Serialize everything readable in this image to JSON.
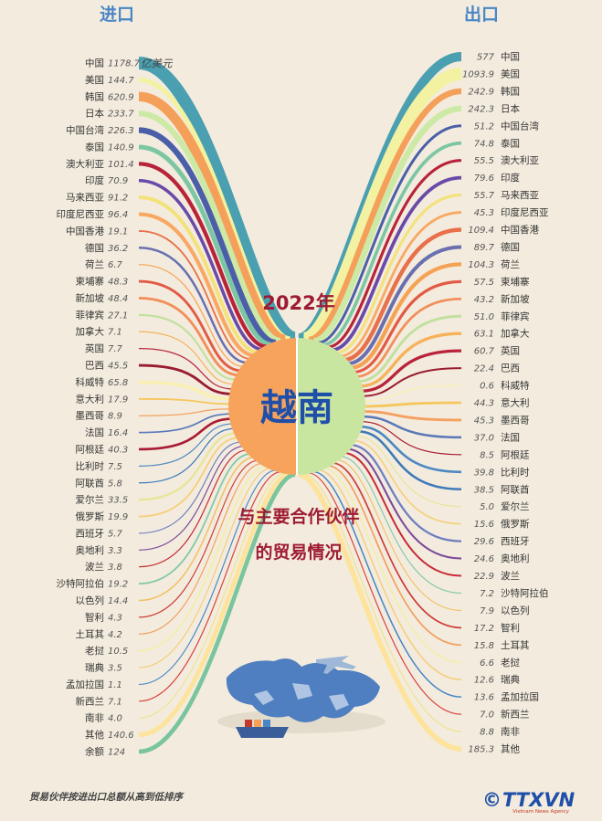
{
  "header": {
    "import_title": "进口",
    "export_title": "出口"
  },
  "center": {
    "year": "2022年",
    "country": "越南",
    "subtitle_line1": "与主要合作伙伴",
    "subtitle_line2": "的贸易情况"
  },
  "unit_label": "亿美元",
  "footnote": "贸易伙伴按进出口总额从高到低排序",
  "logo": {
    "text": "TTXVN",
    "copyright": "©",
    "tagline": "Vietnam News Agency"
  },
  "chart_data": {
    "type": "flow",
    "imports": [
      {
        "partner": "中国",
        "value": 1178.7
      },
      {
        "partner": "美国",
        "value": 144.7
      },
      {
        "partner": "韩国",
        "value": 620.9
      },
      {
        "partner": "日本",
        "value": 233.7
      },
      {
        "partner": "中国台湾",
        "value": 226.3
      },
      {
        "partner": "泰国",
        "value": 140.9
      },
      {
        "partner": "澳大利亚",
        "value": 101.4
      },
      {
        "partner": "印度",
        "value": 70.9
      },
      {
        "partner": "马来西亚",
        "value": 91.2
      },
      {
        "partner": "印度尼西亚",
        "value": 96.4
      },
      {
        "partner": "中国香港",
        "value": 19.1
      },
      {
        "partner": "德国",
        "value": 36.2
      },
      {
        "partner": "荷兰",
        "value": 6.7
      },
      {
        "partner": "柬埔寨",
        "value": 48.3
      },
      {
        "partner": "新加坡",
        "value": 48.4
      },
      {
        "partner": "菲律宾",
        "value": 27.1
      },
      {
        "partner": "加拿大",
        "value": 7.1
      },
      {
        "partner": "英国",
        "value": 7.7
      },
      {
        "partner": "巴西",
        "value": 45.5
      },
      {
        "partner": "科威特",
        "value": 65.8
      },
      {
        "partner": "意大利",
        "value": 17.9
      },
      {
        "partner": "墨西哥",
        "value": 8.9
      },
      {
        "partner": "法国",
        "value": 16.4
      },
      {
        "partner": "阿根廷",
        "value": 40.3
      },
      {
        "partner": "比利时",
        "value": 7.5
      },
      {
        "partner": "阿联酋",
        "value": 5.8
      },
      {
        "partner": "爱尔兰",
        "value": 33.5
      },
      {
        "partner": "俄罗斯",
        "value": 19.9
      },
      {
        "partner": "西班牙",
        "value": 5.7
      },
      {
        "partner": "奥地利",
        "value": 3.3
      },
      {
        "partner": "波兰",
        "value": 3.8
      },
      {
        "partner": "沙特阿拉伯",
        "value": 19.2
      },
      {
        "partner": "以色列",
        "value": 14.4
      },
      {
        "partner": "智利",
        "value": 4.3
      },
      {
        "partner": "土耳其",
        "value": 4.2
      },
      {
        "partner": "老挝",
        "value": 10.5
      },
      {
        "partner": "瑞典",
        "value": 3.5
      },
      {
        "partner": "孟加拉国",
        "value": 1.1
      },
      {
        "partner": "新西兰",
        "value": 7.1
      },
      {
        "partner": "南非",
        "value": 4.0
      },
      {
        "partner": "其他",
        "value": 140.6
      },
      {
        "partner": "余额",
        "value": 124
      }
    ],
    "exports": [
      {
        "partner": "中国",
        "value": 577
      },
      {
        "partner": "美国",
        "value": 1093.9
      },
      {
        "partner": "韩国",
        "value": 242.9
      },
      {
        "partner": "日本",
        "value": 242.3
      },
      {
        "partner": "中国台湾",
        "value": 51.2
      },
      {
        "partner": "泰国",
        "value": 74.8
      },
      {
        "partner": "澳大利亚",
        "value": 55.5
      },
      {
        "partner": "印度",
        "value": 79.6
      },
      {
        "partner": "马来西亚",
        "value": 55.7
      },
      {
        "partner": "印度尼西亚",
        "value": 45.3
      },
      {
        "partner": "中国香港",
        "value": 109.4
      },
      {
        "partner": "德国",
        "value": 89.7
      },
      {
        "partner": "荷兰",
        "value": 104.3
      },
      {
        "partner": "柬埔寨",
        "value": 57.5
      },
      {
        "partner": "新加坡",
        "value": 43.2
      },
      {
        "partner": "菲律宾",
        "value": 51.0
      },
      {
        "partner": "加拿大",
        "value": 63.1
      },
      {
        "partner": "英国",
        "value": 60.7
      },
      {
        "partner": "巴西",
        "value": 22.4
      },
      {
        "partner": "科威特",
        "value": 0.6
      },
      {
        "partner": "意大利",
        "value": 44.3
      },
      {
        "partner": "墨西哥",
        "value": 45.3
      },
      {
        "partner": "法国",
        "value": 37.0
      },
      {
        "partner": "阿根廷",
        "value": 8.5
      },
      {
        "partner": "比利时",
        "value": 39.8
      },
      {
        "partner": "阿联酋",
        "value": 38.5
      },
      {
        "partner": "爱尔兰",
        "value": 5.0
      },
      {
        "partner": "俄罗斯",
        "value": 15.6
      },
      {
        "partner": "西班牙",
        "value": 29.6
      },
      {
        "partner": "奥地利",
        "value": 24.6
      },
      {
        "partner": "波兰",
        "value": 22.9
      },
      {
        "partner": "沙特阿拉伯",
        "value": 7.2
      },
      {
        "partner": "以色列",
        "value": 7.9
      },
      {
        "partner": "智利",
        "value": 17.2
      },
      {
        "partner": "土耳其",
        "value": 15.8
      },
      {
        "partner": "老挝",
        "value": 6.6
      },
      {
        "partner": "瑞典",
        "value": 12.6
      },
      {
        "partner": "孟加拉国",
        "value": 13.6
      },
      {
        "partner": "新西兰",
        "value": 7.0
      },
      {
        "partner": "南非",
        "value": 8.8
      },
      {
        "partner": "其他",
        "value": 185.3
      }
    ],
    "colors": [
      "#4a9fb0",
      "#f2f2a2",
      "#f5a05a",
      "#cde9a6",
      "#4a5fa8",
      "#7cc6a4",
      "#b8233a",
      "#6a4aa8",
      "#f3e27a",
      "#f9a863",
      "#e8704a",
      "#6a6fb0",
      "#f6a254",
      "#e25a45",
      "#f28f5a",
      "#c3e0a0",
      "#f5b25a",
      "#b8233a",
      "#9a1c30",
      "#f8efb0",
      "#f5c65c",
      "#f4a060",
      "#5a78b8",
      "#a81c34",
      "#4d88c2",
      "#3f7ab8",
      "#e7e59a",
      "#f6cf7a",
      "#6f7ec0",
      "#7c4a9a",
      "#c72a38",
      "#85c9a8",
      "#f2c166",
      "#cc3e3a",
      "#f39f5c",
      "#f2ef9a",
      "#f5cd7a",
      "#4a86c6",
      "#d9423d",
      "#f0e290",
      "#fde39c",
      "#7ac49e"
    ]
  }
}
